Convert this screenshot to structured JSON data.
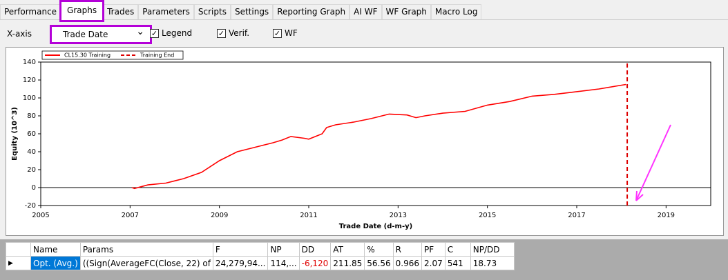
{
  "tabs": [
    "Performance",
    "Graphs",
    "Trades",
    "Parameters",
    "Scripts",
    "Settings",
    "Reporting Graph",
    "AI WF",
    "WF Graph",
    "Macro Log"
  ],
  "active_tab": 1,
  "controls": {
    "xaxis_label": "X-axis",
    "dropdown": "Trade Date",
    "checkboxes": [
      {
        "label": "Legend",
        "checked": true
      },
      {
        "label": "Verif.",
        "checked": true
      },
      {
        "label": "WF",
        "checked": true
      }
    ]
  },
  "chart_data": {
    "type": "line",
    "x_label": "Trade Date (d-m-y)",
    "y_label": "Equity (10^3)",
    "xlim": [
      2005,
      2020
    ],
    "xticks": [
      2005,
      2007,
      2009,
      2011,
      2013,
      2015,
      2017,
      2019
    ],
    "ylim": [
      -20,
      140
    ],
    "yticks": [
      -20,
      0,
      20,
      40,
      60,
      80,
      100,
      120,
      140
    ],
    "legend": "top-left",
    "series": [
      {
        "name": "CL15.30 Training",
        "color": "#ff0000",
        "dash": false,
        "x": [
          2007.04,
          2007.1,
          2007.4,
          2007.8,
          2008.2,
          2008.6,
          2009.0,
          2009.2,
          2009.4,
          2009.8,
          2010.2,
          2010.4,
          2010.6,
          2010.9,
          2011.0,
          2011.3,
          2011.4,
          2011.6,
          2012.0,
          2012.4,
          2012.8,
          2013.2,
          2013.4,
          2013.6,
          2014.0,
          2014.5,
          2015.0,
          2015.5,
          2016.0,
          2016.5,
          2017.0,
          2017.5,
          2018.1
        ],
        "values": [
          0,
          -1,
          3,
          5,
          10,
          17,
          30,
          35,
          40,
          45,
          50,
          53,
          57,
          55,
          54,
          60,
          67,
          70,
          73,
          77,
          82,
          81,
          78,
          80,
          83,
          85,
          92,
          96,
          102,
          104,
          107,
          110,
          115
        ]
      },
      {
        "name": "Training End",
        "color": "#dd0000",
        "dash": true,
        "x": [
          2018.13,
          2018.13
        ],
        "values": [
          -20,
          140
        ]
      }
    ]
  },
  "table": {
    "headers": [
      "Name",
      "Params",
      "F",
      "NP",
      "DD",
      "AT",
      "%",
      "R",
      "PF",
      "C",
      "NP/DD"
    ],
    "rows": [
      [
        "Opt. (Avg.)",
        "((Sign(AverageFC(Close, 22) of",
        "24,279,94...",
        "114,...",
        "-6,120",
        "211.85",
        "56.56",
        "0.966",
        "2.07",
        "541",
        "18.73"
      ]
    ]
  }
}
